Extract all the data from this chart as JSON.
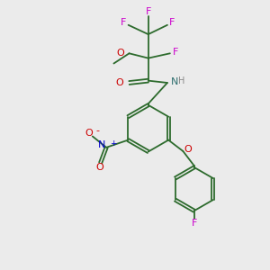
{
  "background_color": "#ebebeb",
  "bond_color": "#2d6b2d",
  "atom_colors": {
    "F": "#cc00cc",
    "O": "#cc0000",
    "N_amide": "#2d6e6e",
    "H": "#888888",
    "N_nitro": "#0000cc",
    "O_nitro": "#cc0000",
    "F_bottom": "#cc00cc"
  },
  "figsize": [
    3.0,
    3.0
  ],
  "dpi": 100
}
